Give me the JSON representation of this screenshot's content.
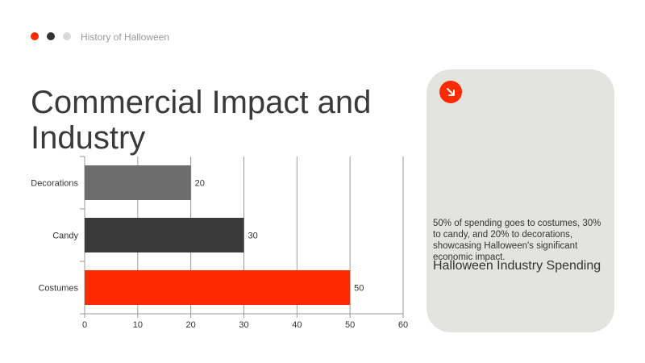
{
  "header": {
    "breadcrumb": "History of Halloween",
    "dot_colors": [
      "#ff2a00",
      "#333333",
      "#d9d9d9"
    ]
  },
  "slide": {
    "title": "Commercial Impact and Industry"
  },
  "card": {
    "icon": "arrow-down-right-icon",
    "accent": "#ff2a00",
    "description": "50% of spending goes to costumes, 30% to candy, and 20% to decorations, showcasing Halloween's significant economic impact.",
    "heading": "Halloween Industry Spending"
  },
  "chart_data": {
    "type": "bar",
    "orientation": "horizontal",
    "categories": [
      "Decorations",
      "Candy",
      "Costumes"
    ],
    "values": [
      20,
      30,
      50
    ],
    "colors": [
      "#6d6d6d",
      "#3a3a3a",
      "#ff2a00"
    ],
    "xlim": [
      0,
      60
    ],
    "xticks": [
      0,
      10,
      20,
      30,
      40,
      50,
      60
    ],
    "grid": true,
    "data_labels": true
  }
}
